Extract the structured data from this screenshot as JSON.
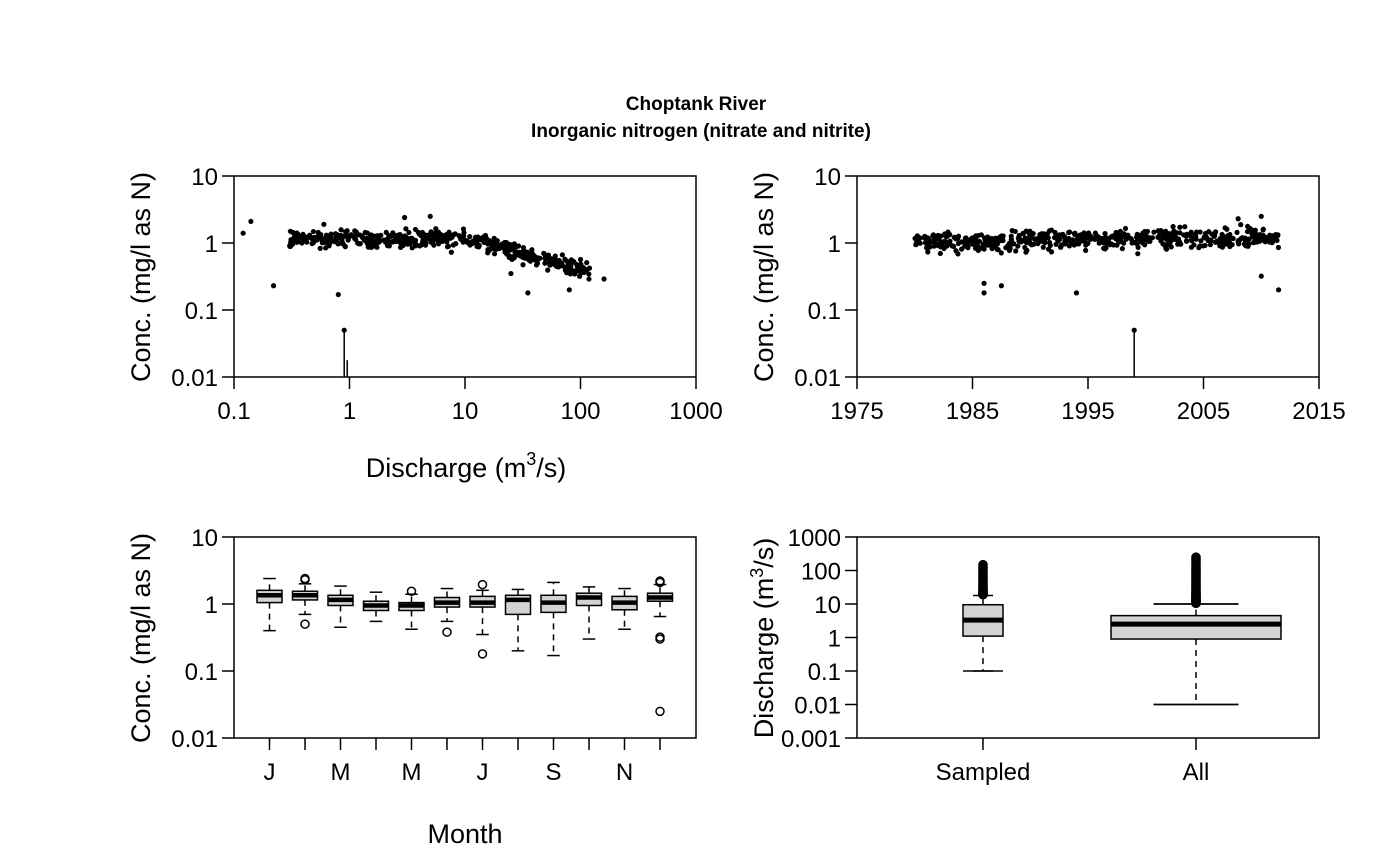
{
  "title": {
    "line1": "Choptank River",
    "line2": "Inorganic nitrogen (nitrate and nitrite)"
  },
  "chart_data": [
    {
      "type": "scatter",
      "id": "conc_vs_q",
      "xlabel": "Discharge (m",
      "xlabel_sup": "3",
      "xlabel_tail": "/s)",
      "ylabel": "Conc. (mg/l as N)",
      "xscale": "log",
      "yscale": "log",
      "xlim": [
        0.1,
        1000
      ],
      "ylim": [
        0.01,
        10
      ],
      "xticks": [
        "0.1",
        "1",
        "10",
        "100",
        "1000"
      ],
      "yticks": [
        "0.01",
        "0.1",
        "1",
        "10"
      ],
      "outlier_points": [
        [
          0.12,
          1.4
        ],
        [
          0.14,
          2.1
        ],
        [
          0.22,
          0.23
        ],
        [
          0.8,
          0.17
        ],
        [
          0.9,
          0.05
        ],
        [
          160,
          0.29
        ],
        [
          80,
          0.2
        ],
        [
          25,
          0.35
        ],
        [
          35,
          0.18
        ],
        [
          3,
          2.4
        ],
        [
          5,
          2.5
        ],
        [
          0.6,
          1.9
        ]
      ],
      "censored": [
        {
          "x": 0.9,
          "y": 0.05
        }
      ],
      "cloud": {
        "x_range": [
          0.3,
          120
        ],
        "center": 1.2
      }
    },
    {
      "type": "scatter",
      "id": "conc_vs_time",
      "xlabel": "",
      "ylabel": "Conc. (mg/l as N)",
      "yscale": "log",
      "xlim": [
        1975,
        2015
      ],
      "ylim": [
        0.01,
        10
      ],
      "xticks": [
        "1975",
        "1985",
        "1995",
        "2005",
        "2015"
      ],
      "yticks": [
        "0.01",
        "0.1",
        "1",
        "10"
      ],
      "outlier_points": [
        [
          1986,
          0.18
        ],
        [
          1986,
          0.25
        ],
        [
          1987.5,
          0.23
        ],
        [
          1994,
          0.18
        ],
        [
          1999,
          0.05
        ],
        [
          2010,
          0.32
        ],
        [
          2011.5,
          0.2
        ],
        [
          2010,
          2.5
        ],
        [
          2008,
          2.3
        ]
      ],
      "censored": [
        {
          "x": 1999,
          "y": 0.05
        }
      ],
      "cloud": {
        "x_range": [
          1980,
          2011.5
        ],
        "center": 1.2
      }
    },
    {
      "type": "box",
      "id": "conc_by_month",
      "xlabel": "Month",
      "ylabel": "Conc. (mg/l as N)",
      "yscale": "log",
      "ylim": [
        0.01,
        10
      ],
      "yticks": [
        "0.01",
        "0.1",
        "1",
        "10"
      ],
      "xtick_labels": [
        "J",
        "M",
        "M",
        "J",
        "S",
        "N"
      ],
      "xtick_positions": [
        1,
        3,
        5,
        7,
        9,
        11
      ],
      "boxes": [
        {
          "month": 1,
          "lo": 0.4,
          "q1": 1.05,
          "med": 1.35,
          "q3": 1.6,
          "hi": 2.4,
          "outliers": []
        },
        {
          "month": 2,
          "lo": 0.7,
          "q1": 1.15,
          "med": 1.35,
          "q3": 1.55,
          "hi": 2.0,
          "outliers": [
            2.3,
            2.4,
            0.5
          ]
        },
        {
          "month": 3,
          "lo": 0.45,
          "q1": 0.95,
          "med": 1.15,
          "q3": 1.35,
          "hi": 1.85,
          "outliers": []
        },
        {
          "month": 4,
          "lo": 0.55,
          "q1": 0.8,
          "med": 0.95,
          "q3": 1.1,
          "hi": 1.5,
          "outliers": []
        },
        {
          "month": 5,
          "lo": 0.42,
          "q1": 0.8,
          "med": 0.95,
          "q3": 1.05,
          "hi": 1.4,
          "outliers": [
            1.55
          ]
        },
        {
          "month": 6,
          "lo": 0.55,
          "q1": 0.9,
          "med": 1.05,
          "q3": 1.25,
          "hi": 1.7,
          "outliers": [
            0.38
          ]
        },
        {
          "month": 7,
          "lo": 0.35,
          "q1": 0.9,
          "med": 1.05,
          "q3": 1.3,
          "hi": 1.6,
          "outliers": [
            1.95,
            0.18
          ]
        },
        {
          "month": 8,
          "lo": 0.2,
          "q1": 0.7,
          "med": 1.15,
          "q3": 1.35,
          "hi": 1.65,
          "outliers": []
        },
        {
          "month": 9,
          "lo": 0.17,
          "q1": 0.75,
          "med": 1.05,
          "q3": 1.35,
          "hi": 2.1,
          "outliers": []
        },
        {
          "month": 10,
          "lo": 0.3,
          "q1": 0.95,
          "med": 1.25,
          "q3": 1.45,
          "hi": 1.8,
          "outliers": []
        },
        {
          "month": 11,
          "lo": 0.42,
          "q1": 0.82,
          "med": 1.05,
          "q3": 1.3,
          "hi": 1.7,
          "outliers": []
        },
        {
          "month": 12,
          "lo": 0.65,
          "q1": 1.1,
          "med": 1.25,
          "q3": 1.45,
          "hi": 1.95,
          "outliers": [
            2.1,
            2.2,
            0.32,
            0.3,
            0.025
          ]
        }
      ]
    },
    {
      "type": "box",
      "id": "discharge_sampled_vs_all",
      "xlabel": "",
      "ylabel": "Discharge (m",
      "ylabel_sup": "3",
      "ylabel_tail": "/s)",
      "yscale": "log",
      "ylim": [
        0.001,
        1000
      ],
      "yticks": [
        "0.001",
        "0.01",
        "0.1",
        "1",
        "10",
        "100",
        "1000"
      ],
      "categories": [
        "Sampled",
        "All"
      ],
      "boxes": [
        {
          "name": "Sampled",
          "lo": 0.1,
          "q1": 1.1,
          "med": 3.3,
          "q3": 9.5,
          "hi": 18,
          "outliers_range": [
            19,
            150
          ]
        },
        {
          "name": "All",
          "lo": 0.01,
          "q1": 0.9,
          "med": 2.5,
          "q3": 4.5,
          "hi": 10,
          "outliers_range": [
            10.5,
            250
          ]
        }
      ]
    }
  ]
}
